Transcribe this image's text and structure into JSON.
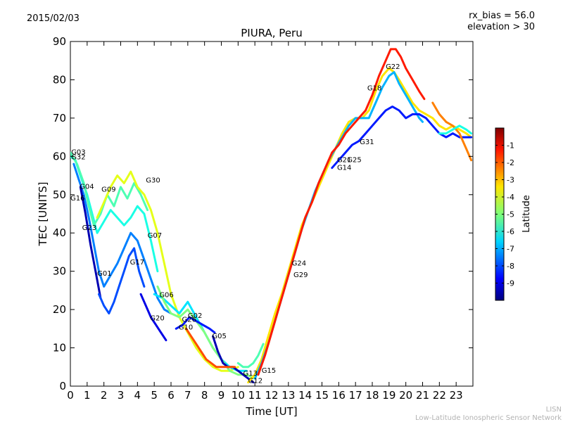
{
  "header": {
    "date": "2015/02/03",
    "rx_bias": "rx_bias = 56.0",
    "elevation": "elevation > 30"
  },
  "footer": {
    "line1": "LISN",
    "line2": "Low-Latitude Ionospheric Sensor Network"
  },
  "chart_data": {
    "type": "scatter",
    "title": "PIURA, Peru",
    "xlabel": "Time [UT]",
    "ylabel": "TEC [UNITS]",
    "xlim": [
      0,
      24
    ],
    "ylim": [
      0,
      90
    ],
    "xticks": [
      "0",
      "1",
      "2",
      "3",
      "4",
      "5",
      "6",
      "7",
      "8",
      "9",
      "10",
      "11",
      "12",
      "13",
      "14",
      "15",
      "16",
      "17",
      "18",
      "19",
      "20",
      "21",
      "22",
      "23"
    ],
    "yticks": [
      "0",
      "10",
      "20",
      "30",
      "40",
      "50",
      "60",
      "70",
      "80",
      "90"
    ],
    "grid": false,
    "colorbar": {
      "label": "Latitude",
      "range": [
        -10,
        0
      ],
      "ticks": [
        "-1",
        "-2",
        "-3",
        "-4",
        "-5",
        "-6",
        "-7",
        "-8",
        "-9"
      ]
    },
    "satellite_labels": [
      {
        "name": "G03",
        "x": 0.05,
        "y": 60.5
      },
      {
        "name": "G32",
        "x": 0.05,
        "y": 59.2
      },
      {
        "name": "G04",
        "x": 0.55,
        "y": 51.5
      },
      {
        "name": "G16",
        "x": 0.0,
        "y": 48.5
      },
      {
        "name": "G09",
        "x": 1.85,
        "y": 50.8
      },
      {
        "name": "G23",
        "x": 0.7,
        "y": 40.8
      },
      {
        "name": "G30",
        "x": 4.5,
        "y": 53.2
      },
      {
        "name": "G07",
        "x": 4.6,
        "y": 38.8
      },
      {
        "name": "G17",
        "x": 3.55,
        "y": 31.8
      },
      {
        "name": "G01",
        "x": 1.6,
        "y": 28.8
      },
      {
        "name": "G06",
        "x": 5.3,
        "y": 23.2
      },
      {
        "name": "G20",
        "x": 4.75,
        "y": 17.2
      },
      {
        "name": "G26",
        "x": 6.65,
        "y": 16.8
      },
      {
        "name": "G02",
        "x": 7.0,
        "y": 17.8
      },
      {
        "name": "G10",
        "x": 6.45,
        "y": 14.8
      },
      {
        "name": "G05",
        "x": 8.45,
        "y": 12.5
      },
      {
        "name": "G13",
        "x": 10.3,
        "y": 2.8
      },
      {
        "name": "G12",
        "x": 10.6,
        "y": 0.8
      },
      {
        "name": "G15",
        "x": 11.4,
        "y": 3.5
      },
      {
        "name": "G24",
        "x": 13.2,
        "y": 31.5
      },
      {
        "name": "G29",
        "x": 13.3,
        "y": 28.5
      },
      {
        "name": "G21",
        "x": 15.9,
        "y": 58.5
      },
      {
        "name": "G25",
        "x": 16.5,
        "y": 58.5
      },
      {
        "name": "G14",
        "x": 15.9,
        "y": 56.5
      },
      {
        "name": "G31",
        "x": 17.25,
        "y": 63.2
      },
      {
        "name": "G18",
        "x": 17.7,
        "y": 77.2
      },
      {
        "name": "G22",
        "x": 18.8,
        "y": 82.8
      }
    ],
    "series": [
      {
        "lat": -6.0,
        "x": [
          0.0,
          0.3,
          0.6,
          1.0,
          1.3,
          1.6,
          2.0,
          2.4,
          2.8,
          3.2,
          3.6,
          4.0,
          4.4,
          4.8,
          5.2
        ],
        "y": [
          60,
          59,
          55,
          50,
          45,
          40,
          43,
          46,
          44,
          42,
          44,
          47,
          45,
          38,
          30
        ]
      },
      {
        "lat": -5.5,
        "x": [
          0.0,
          0.4,
          0.8,
          1.1,
          1.4,
          1.8,
          2.2,
          2.6,
          3.0,
          3.4,
          3.8,
          4.2,
          4.6
        ],
        "y": [
          61,
          58,
          53,
          47,
          42,
          45,
          50,
          47,
          52,
          49,
          53,
          50,
          46
        ]
      },
      {
        "lat": -4.0,
        "x": [
          1.6,
          2.0,
          2.4,
          2.8,
          3.2,
          3.6,
          4.0,
          4.4,
          4.8,
          5.2,
          5.6,
          6.0,
          6.5,
          7.0,
          7.5,
          8.0,
          8.5,
          9.0,
          9.5,
          10.0
        ],
        "y": [
          44,
          48,
          52,
          55,
          53,
          56,
          52,
          50,
          46,
          40,
          32,
          24,
          18,
          14,
          10,
          7,
          5,
          4,
          4,
          5
        ]
      },
      {
        "lat": -7.5,
        "x": [
          0.2,
          0.5,
          0.8,
          1.1,
          1.4,
          1.7,
          2.0,
          2.4,
          2.8,
          3.2,
          3.6,
          4.0,
          4.4,
          4.8,
          5.2,
          5.6,
          6.0
        ],
        "y": [
          58,
          54,
          50,
          44,
          37,
          30,
          26,
          29,
          32,
          36,
          40,
          38,
          33,
          28,
          23,
          20,
          19
        ]
      },
      {
        "lat": -9.5,
        "x": [
          0.6,
          0.9,
          1.2,
          1.5,
          1.8
        ],
        "y": [
          52,
          45,
          37,
          30,
          23
        ]
      },
      {
        "lat": -9.0,
        "x": [
          4.2,
          4.5,
          4.8,
          5.1,
          5.4,
          5.7
        ],
        "y": [
          24,
          21,
          18,
          16,
          14,
          12
        ]
      },
      {
        "lat": -8.0,
        "x": [
          1.7,
          2.0,
          2.3,
          2.6,
          2.9,
          3.2,
          3.5,
          3.8,
          4.1,
          4.4
        ],
        "y": [
          24,
          21,
          19,
          22,
          26,
          30,
          34,
          36,
          30,
          26
        ]
      },
      {
        "lat": -6.5,
        "x": [
          5.0,
          5.5,
          6.0,
          6.5,
          7.0,
          7.5,
          8.0,
          8.5,
          9.0,
          9.5,
          10.0,
          10.5
        ],
        "y": [
          24,
          23,
          21,
          19,
          22,
          18,
          14,
          10,
          7,
          5,
          4,
          4
        ]
      },
      {
        "lat": -5.0,
        "x": [
          5.2,
          5.6,
          6.0,
          6.5,
          7.0,
          7.5,
          8.0,
          8.5,
          9.0,
          9.5,
          10.0,
          10.5,
          11.0
        ],
        "y": [
          26,
          22,
          19,
          18,
          20,
          17,
          14,
          10,
          7,
          4,
          3,
          3,
          2
        ]
      },
      {
        "lat": -8.5,
        "x": [
          6.3,
          6.7,
          7.1,
          7.5,
          7.9,
          8.3,
          8.6
        ],
        "y": [
          15,
          16,
          18,
          17,
          16,
          15,
          14
        ]
      },
      {
        "lat": -9.5,
        "x": [
          8.5,
          8.8,
          9.1,
          9.4,
          9.7,
          10.0,
          10.3,
          10.6,
          10.9
        ],
        "y": [
          13,
          9,
          6,
          5,
          5,
          4,
          3,
          2,
          1
        ]
      },
      {
        "lat": -2.0,
        "x": [
          6.9,
          7.2,
          7.5,
          7.8,
          8.1,
          8.4,
          8.7,
          9.0,
          9.4,
          9.8
        ],
        "y": [
          15,
          13,
          11,
          9,
          7,
          6,
          5,
          5,
          5,
          5
        ]
      },
      {
        "lat": -5.5,
        "x": [
          10.0,
          10.3,
          10.6,
          10.9,
          11.2,
          11.5
        ],
        "y": [
          6,
          5,
          5,
          6,
          8,
          11
        ]
      },
      {
        "lat": -3.5,
        "x": [
          10.6,
          11.0,
          11.4,
          11.8,
          12.2,
          12.6,
          13.0,
          13.4,
          13.8,
          14.2,
          14.6,
          15.0,
          15.4,
          15.8,
          16.2,
          16.6,
          17.0,
          17.4,
          17.8,
          18.2,
          18.6,
          19.0,
          19.3,
          19.6,
          20.0,
          20.4,
          20.8,
          21.2,
          21.6,
          22.0,
          22.4,
          22.8,
          23.2,
          23.6,
          23.9
        ],
        "y": [
          1,
          3,
          7,
          13,
          19,
          24,
          30,
          36,
          42,
          46,
          50,
          54,
          58,
          62,
          66,
          69,
          70,
          70,
          72,
          77,
          81,
          83,
          82,
          80,
          77,
          74,
          72,
          71,
          70,
          68,
          67,
          68,
          67,
          66,
          65
        ]
      },
      {
        "lat": -7.0,
        "x": [
          11.0,
          11.4,
          11.8,
          12.2,
          12.6,
          13.0,
          13.4,
          13.8,
          14.2,
          14.6,
          15.0,
          15.4,
          15.8,
          16.2,
          16.6,
          17.0,
          17.4,
          17.8,
          18.2,
          18.6,
          19.0,
          19.3,
          19.6,
          20.0,
          20.4,
          20.8,
          21.0
        ],
        "y": [
          2,
          6,
          11,
          17,
          23,
          29,
          35,
          41,
          46,
          51,
          55,
          59,
          62,
          65,
          68,
          70,
          70,
          70,
          74,
          78,
          81,
          82,
          79,
          76,
          73,
          70,
          69
        ]
      },
      {
        "lat": -1.5,
        "x": [
          11.2,
          11.6,
          12.0,
          12.4,
          12.8,
          13.2,
          13.6,
          14.0,
          14.4,
          14.8,
          15.2,
          15.6,
          16.0,
          16.4,
          16.8,
          17.2,
          17.6,
          18.0,
          18.4,
          18.8,
          19.1,
          19.4,
          19.7,
          20.0,
          20.4,
          20.8,
          21.1
        ],
        "y": [
          3,
          8,
          14,
          20,
          26,
          32,
          38,
          44,
          48,
          53,
          57,
          61,
          63,
          66,
          68,
          70,
          72,
          76,
          81,
          85,
          88,
          88,
          86,
          83,
          80,
          77,
          75
        ]
      },
      {
        "lat": -8.5,
        "x": [
          15.6,
          16.0,
          16.4,
          16.8,
          17.2,
          17.6,
          18.0,
          18.4,
          18.8,
          19.2,
          19.6,
          20.0,
          20.4,
          20.8,
          21.2,
          21.6,
          22.0,
          22.4,
          22.8,
          23.2,
          23.6,
          23.9
        ],
        "y": [
          57,
          59,
          61,
          63,
          64,
          66,
          68,
          70,
          72,
          73,
          72,
          70,
          71,
          71,
          70,
          68,
          66,
          65,
          66,
          65,
          65,
          65
        ]
      },
      {
        "lat": -2.5,
        "x": [
          21.6,
          22.0,
          22.4,
          22.8,
          23.2,
          23.6,
          23.9
        ],
        "y": [
          74,
          71,
          69,
          68,
          66,
          62,
          59
        ]
      },
      {
        "lat": -6.0,
        "x": [
          22.0,
          22.4,
          22.8,
          23.2,
          23.6,
          23.9
        ],
        "y": [
          66,
          66,
          67,
          68,
          67,
          66
        ]
      }
    ]
  }
}
